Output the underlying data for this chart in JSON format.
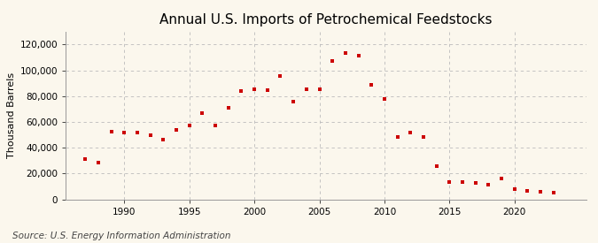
{
  "title": "Annual U.S. Imports of Petrochemical Feedstocks",
  "ylabel": "Thousand Barrels",
  "source": "Source: U.S. Energy Information Administration",
  "background_color": "#FBF7ED",
  "marker_color": "#CC0000",
  "years": [
    1987,
    1988,
    1989,
    1990,
    1991,
    1992,
    1993,
    1994,
    1995,
    1996,
    1997,
    1998,
    1999,
    2000,
    2001,
    2002,
    2003,
    2004,
    2005,
    2006,
    2007,
    2008,
    2009,
    2010,
    2011,
    2012,
    2013,
    2014,
    2015,
    2016,
    2017,
    2018,
    2019,
    2020,
    2021,
    2022,
    2023
  ],
  "values": [
    31000,
    28500,
    52500,
    52000,
    51500,
    50000,
    46000,
    53500,
    57500,
    66500,
    57000,
    71000,
    84000,
    85000,
    84500,
    95500,
    76000,
    85000,
    85000,
    107000,
    113500,
    111500,
    89000,
    78000,
    48000,
    51500,
    48000,
    26000,
    13500,
    13500,
    13000,
    11000,
    16000,
    8000,
    6500,
    6000,
    5000
  ],
  "ylim": [
    0,
    130000
  ],
  "yticks": [
    0,
    20000,
    40000,
    60000,
    80000,
    100000,
    120000
  ],
  "xlim": [
    1985.5,
    2025.5
  ],
  "xticks": [
    1990,
    1995,
    2000,
    2005,
    2010,
    2015,
    2020
  ],
  "grid_color": "#BBBBBB",
  "title_fontsize": 11,
  "label_fontsize": 8,
  "tick_fontsize": 7.5,
  "source_fontsize": 7.5
}
